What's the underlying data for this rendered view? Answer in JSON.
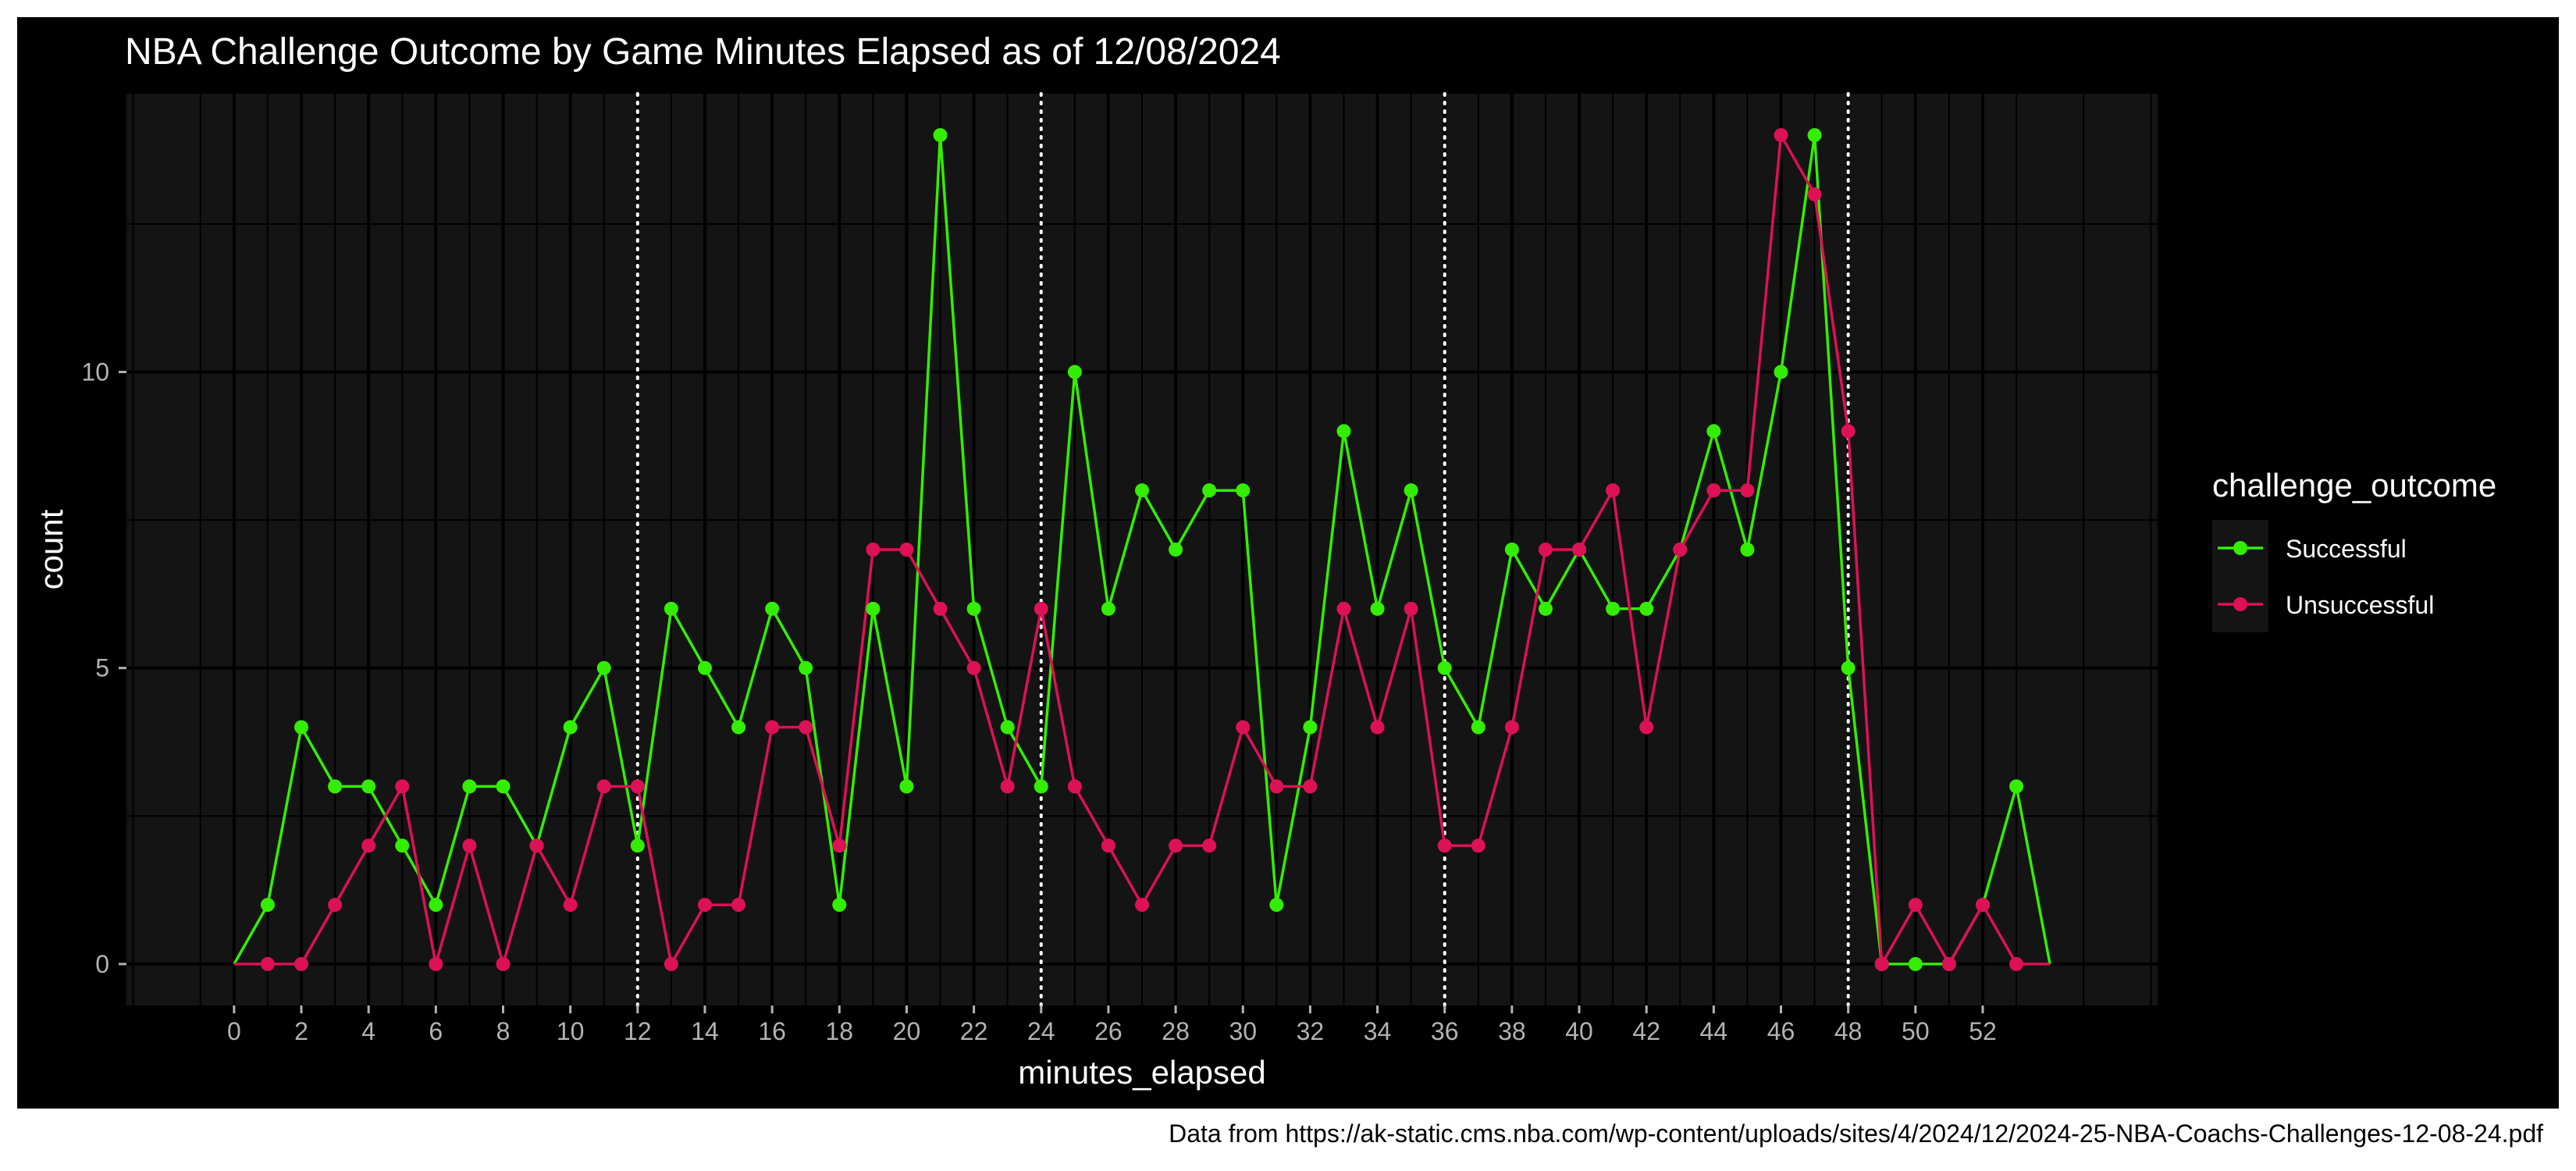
{
  "chart_data": {
    "type": "line",
    "title": "NBA Challenge Outcome by Game Minutes Elapsed as of 12/08/2024",
    "xlabel": "minutes_elapsed",
    "ylabel": "count",
    "xlim": [
      -3.2,
      57.2
    ],
    "ylim": [
      -0.7,
      14.7
    ],
    "x_ticks": [
      0,
      2,
      4,
      6,
      8,
      10,
      12,
      14,
      16,
      18,
      20,
      22,
      24,
      26,
      28,
      30,
      32,
      34,
      36,
      38,
      40,
      42,
      44,
      46,
      48,
      50,
      52
    ],
    "y_ticks": [
      0,
      5,
      10
    ],
    "vlines": [
      12,
      24,
      36,
      48
    ],
    "grid": true,
    "legend": {
      "title": "challenge_outcome",
      "position": "right"
    },
    "series": [
      {
        "name": "Successful",
        "color": "#33ee00",
        "x": [
          0,
          1,
          2,
          3,
          4,
          5,
          6,
          7,
          8,
          9,
          10,
          11,
          12,
          13,
          14,
          15,
          16,
          17,
          18,
          19,
          20,
          21,
          22,
          23,
          24,
          25,
          26,
          27,
          28,
          29,
          30,
          31,
          32,
          33,
          34,
          35,
          36,
          37,
          38,
          39,
          40,
          41,
          42,
          43,
          44,
          45,
          46,
          47,
          48,
          49,
          50,
          51,
          52,
          53,
          54
        ],
        "values": [
          0,
          1,
          4,
          3,
          3,
          2,
          1,
          3,
          3,
          2,
          4,
          5,
          2,
          6,
          5,
          4,
          6,
          5,
          1,
          6,
          3,
          14,
          6,
          4,
          3,
          10,
          6,
          8,
          7,
          8,
          8,
          1,
          4,
          9,
          6,
          8,
          5,
          4,
          7,
          6,
          7,
          6,
          6,
          7,
          9,
          7,
          10,
          14,
          5,
          0,
          0,
          0,
          1,
          3,
          0
        ]
      },
      {
        "name": "Unsuccessful",
        "color": "#dd1155",
        "x": [
          0,
          1,
          2,
          3,
          4,
          5,
          6,
          7,
          8,
          9,
          10,
          11,
          12,
          13,
          14,
          15,
          16,
          17,
          18,
          19,
          20,
          21,
          22,
          23,
          24,
          25,
          26,
          27,
          28,
          29,
          30,
          31,
          32,
          33,
          34,
          35,
          36,
          37,
          38,
          39,
          40,
          41,
          42,
          43,
          44,
          45,
          46,
          47,
          48,
          49,
          50,
          51,
          52,
          53,
          54
        ],
        "values": [
          0,
          0,
          0,
          1,
          2,
          3,
          0,
          2,
          0,
          2,
          1,
          3,
          3,
          0,
          1,
          1,
          4,
          4,
          2,
          7,
          7,
          6,
          5,
          3,
          6,
          3,
          2,
          1,
          2,
          2,
          4,
          3,
          3,
          6,
          4,
          6,
          2,
          2,
          4,
          7,
          7,
          8,
          4,
          7,
          8,
          8,
          14,
          13,
          9,
          0,
          1,
          0,
          1,
          0,
          0
        ]
      }
    ]
  },
  "footer": {
    "source": "Data from https://ak-static.cms.nba.com/wp-content/uploads/sites/4/2024/12/2024-25-NBA-Coachs-Challenges-12-08-24.pdf"
  }
}
